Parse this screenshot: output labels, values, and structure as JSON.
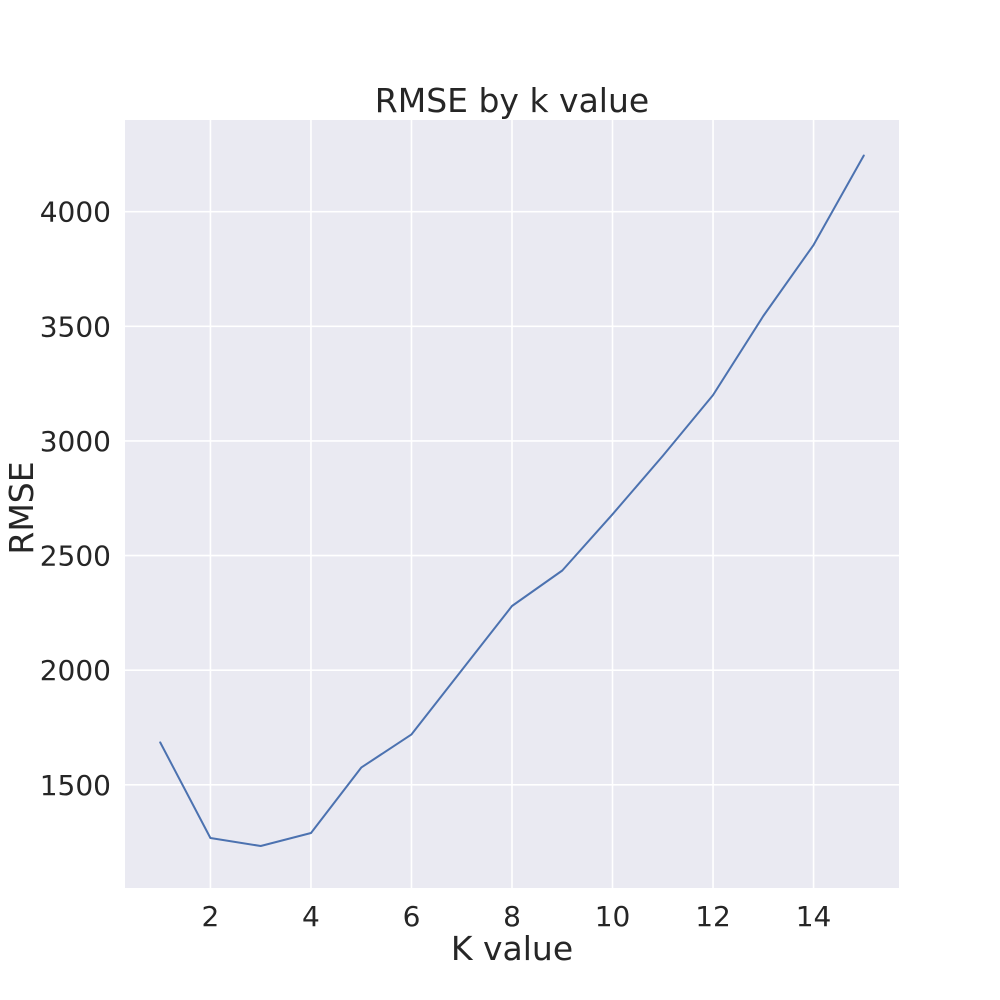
{
  "chart_data": {
    "type": "line",
    "title": "RMSE by k value",
    "xlabel": "K value",
    "ylabel": "RMSE",
    "x": [
      1,
      2,
      3,
      4,
      5,
      6,
      7,
      8,
      9,
      10,
      11,
      12,
      13,
      14,
      15
    ],
    "series": [
      {
        "values": [
          1685,
          1268,
          1233,
          1290,
          1575,
          1720,
          2000,
          2280,
          2435,
          2680,
          2935,
          3200,
          3545,
          3855,
          4245
        ],
        "color": "#4c72b0"
      }
    ],
    "xlim": [
      0.3,
      15.7
    ],
    "ylim": [
      1050,
      4400
    ],
    "xticks": [
      2,
      4,
      6,
      8,
      10,
      12,
      14
    ],
    "yticks": [
      1500,
      2000,
      2500,
      3000,
      3500,
      4000
    ],
    "grid": true,
    "legend": "none",
    "colors": {
      "plot_background": "#eaeaf2",
      "grid": "#ffffff",
      "text": "#262626"
    }
  }
}
